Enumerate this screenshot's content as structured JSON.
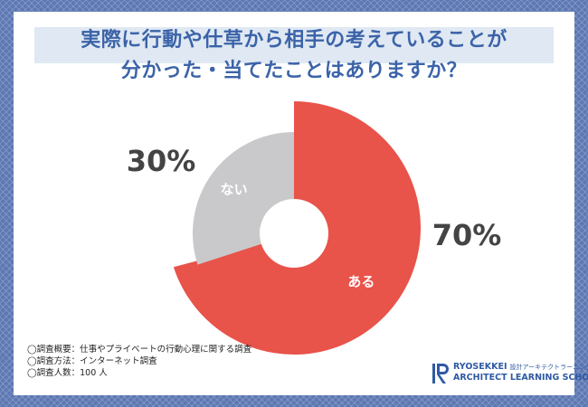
{
  "title": {
    "line1": "実際に行動や仕草から相手の考えていることが",
    "line2": "分かった・当てたことはありますか？"
  },
  "chart_data": {
    "type": "pie",
    "variant": "donut",
    "slices": [
      {
        "label": "ある",
        "value": 70,
        "percent_label": "70%",
        "color": "#e8534a"
      },
      {
        "label": "ない",
        "value": 30,
        "percent_label": "30%",
        "color": "#c9c9cb"
      }
    ]
  },
  "notes": [
    "◯調査概要：仕事やプライベートの行動心理に関する調査",
    "◯調査方法：インターネット調査",
    "◯調査人数：100 人"
  ],
  "logo": {
    "name": "RYOSEKKEI",
    "subtitle": "設計アーキテクトラーニング",
    "line2": "ARCHITECT LEARNING SCHOOL"
  },
  "colors": {
    "background": "#5d78b3",
    "title_text": "#3b63a8",
    "title_band": "#dfe8f3",
    "percent_text": "#444444"
  }
}
